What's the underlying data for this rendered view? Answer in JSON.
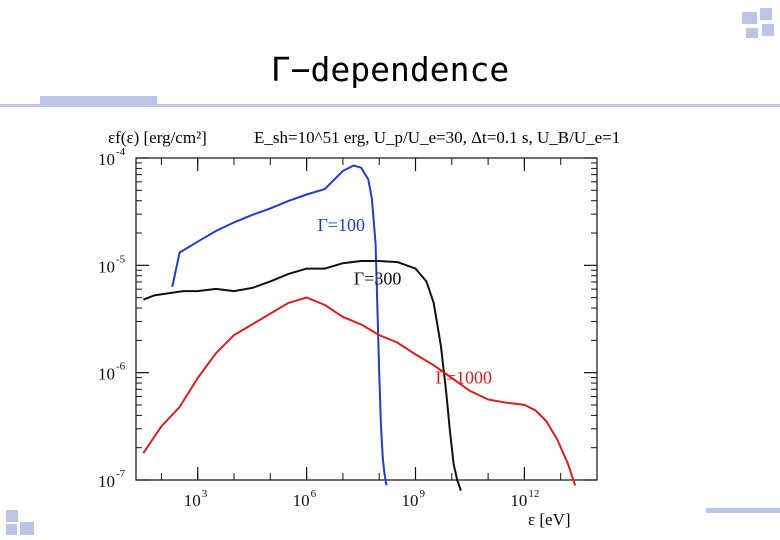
{
  "slide": {
    "title": "Γ−dependence",
    "colors": {
      "accent": "#b9c4e6",
      "blue": "#1f3fbf",
      "red": "#d42020",
      "black": "#111111"
    }
  },
  "chart_data": {
    "type": "line",
    "title": "",
    "ylabel": "εf(ε) [erg/cm²]",
    "xlabel": "ε [eV]",
    "caption": "E_sh=10^51 erg, U_p/U_e=30, Δt=0.1 s, U_B/U_e=1",
    "x_log": true,
    "y_log": true,
    "xlim_log10": [
      1.3,
      14.0
    ],
    "ylim_log10": [
      -7,
      -4
    ],
    "x_ticks": [
      {
        "log": 3,
        "label": "10",
        "exp": "3"
      },
      {
        "log": 6,
        "label": "10",
        "exp": "6"
      },
      {
        "log": 9,
        "label": "10",
        "exp": "9"
      },
      {
        "log": 12,
        "label": "10",
        "exp": "12"
      }
    ],
    "y_ticks": [
      {
        "log": -4,
        "label": "10",
        "exp": "-4"
      },
      {
        "log": -5,
        "label": "10",
        "exp": "-5"
      },
      {
        "log": -6,
        "label": "10",
        "exp": "-6"
      },
      {
        "log": -7,
        "label": "10",
        "exp": "-7"
      }
    ],
    "series": [
      {
        "name": "Γ=100",
        "color": "#1f3fbf",
        "label_at": [
          6.3,
          -4.68
        ],
        "x": [
          2.3,
          2.5,
          3.0,
          3.5,
          4.0,
          4.5,
          5.0,
          5.5,
          6.0,
          6.5,
          7.0,
          7.3,
          7.5,
          7.7,
          7.8,
          7.9,
          7.95,
          8.0,
          8.05,
          8.1,
          8.15,
          8.2
        ],
        "y": [
          -5.2,
          -4.88,
          -4.78,
          -4.68,
          -4.6,
          -4.53,
          -4.47,
          -4.4,
          -4.34,
          -4.29,
          -4.12,
          -4.07,
          -4.09,
          -4.2,
          -4.38,
          -4.8,
          -5.4,
          -6.0,
          -6.5,
          -6.8,
          -6.95,
          -7.05
        ]
      },
      {
        "name": "Γ=300",
        "color": "#111111",
        "label_at": [
          7.3,
          -5.18
        ],
        "x": [
          1.5,
          1.8,
          2.2,
          2.6,
          3.0,
          3.5,
          4.0,
          4.5,
          5.0,
          5.5,
          6.0,
          6.5,
          7.0,
          7.5,
          8.0,
          8.5,
          9.0,
          9.3,
          9.5,
          9.7,
          9.85,
          9.95,
          10.05,
          10.15,
          10.25
        ],
        "y": [
          -5.32,
          -5.28,
          -5.26,
          -5.24,
          -5.24,
          -5.22,
          -5.24,
          -5.21,
          -5.15,
          -5.08,
          -5.03,
          -5.03,
          -4.98,
          -4.96,
          -4.96,
          -4.97,
          -5.03,
          -5.15,
          -5.35,
          -5.75,
          -6.2,
          -6.55,
          -6.85,
          -7.0,
          -7.1
        ]
      },
      {
        "name": "Γ=1000",
        "color": "#d42020",
        "label_at": [
          9.55,
          -6.1
        ],
        "x": [
          1.5,
          2.0,
          2.5,
          3.0,
          3.5,
          4.0,
          4.5,
          5.0,
          5.5,
          6.0,
          6.5,
          7.0,
          7.5,
          8.0,
          8.5,
          9.0,
          9.5,
          10.0,
          10.5,
          11.0,
          11.5,
          12.0,
          12.3,
          12.6,
          12.9,
          13.2,
          13.4
        ],
        "y": [
          -6.75,
          -6.5,
          -6.32,
          -6.05,
          -5.82,
          -5.65,
          -5.55,
          -5.45,
          -5.35,
          -5.3,
          -5.37,
          -5.48,
          -5.55,
          -5.65,
          -5.72,
          -5.83,
          -5.93,
          -6.05,
          -6.17,
          -6.25,
          -6.28,
          -6.3,
          -6.35,
          -6.45,
          -6.62,
          -6.85,
          -7.05
        ]
      }
    ]
  }
}
